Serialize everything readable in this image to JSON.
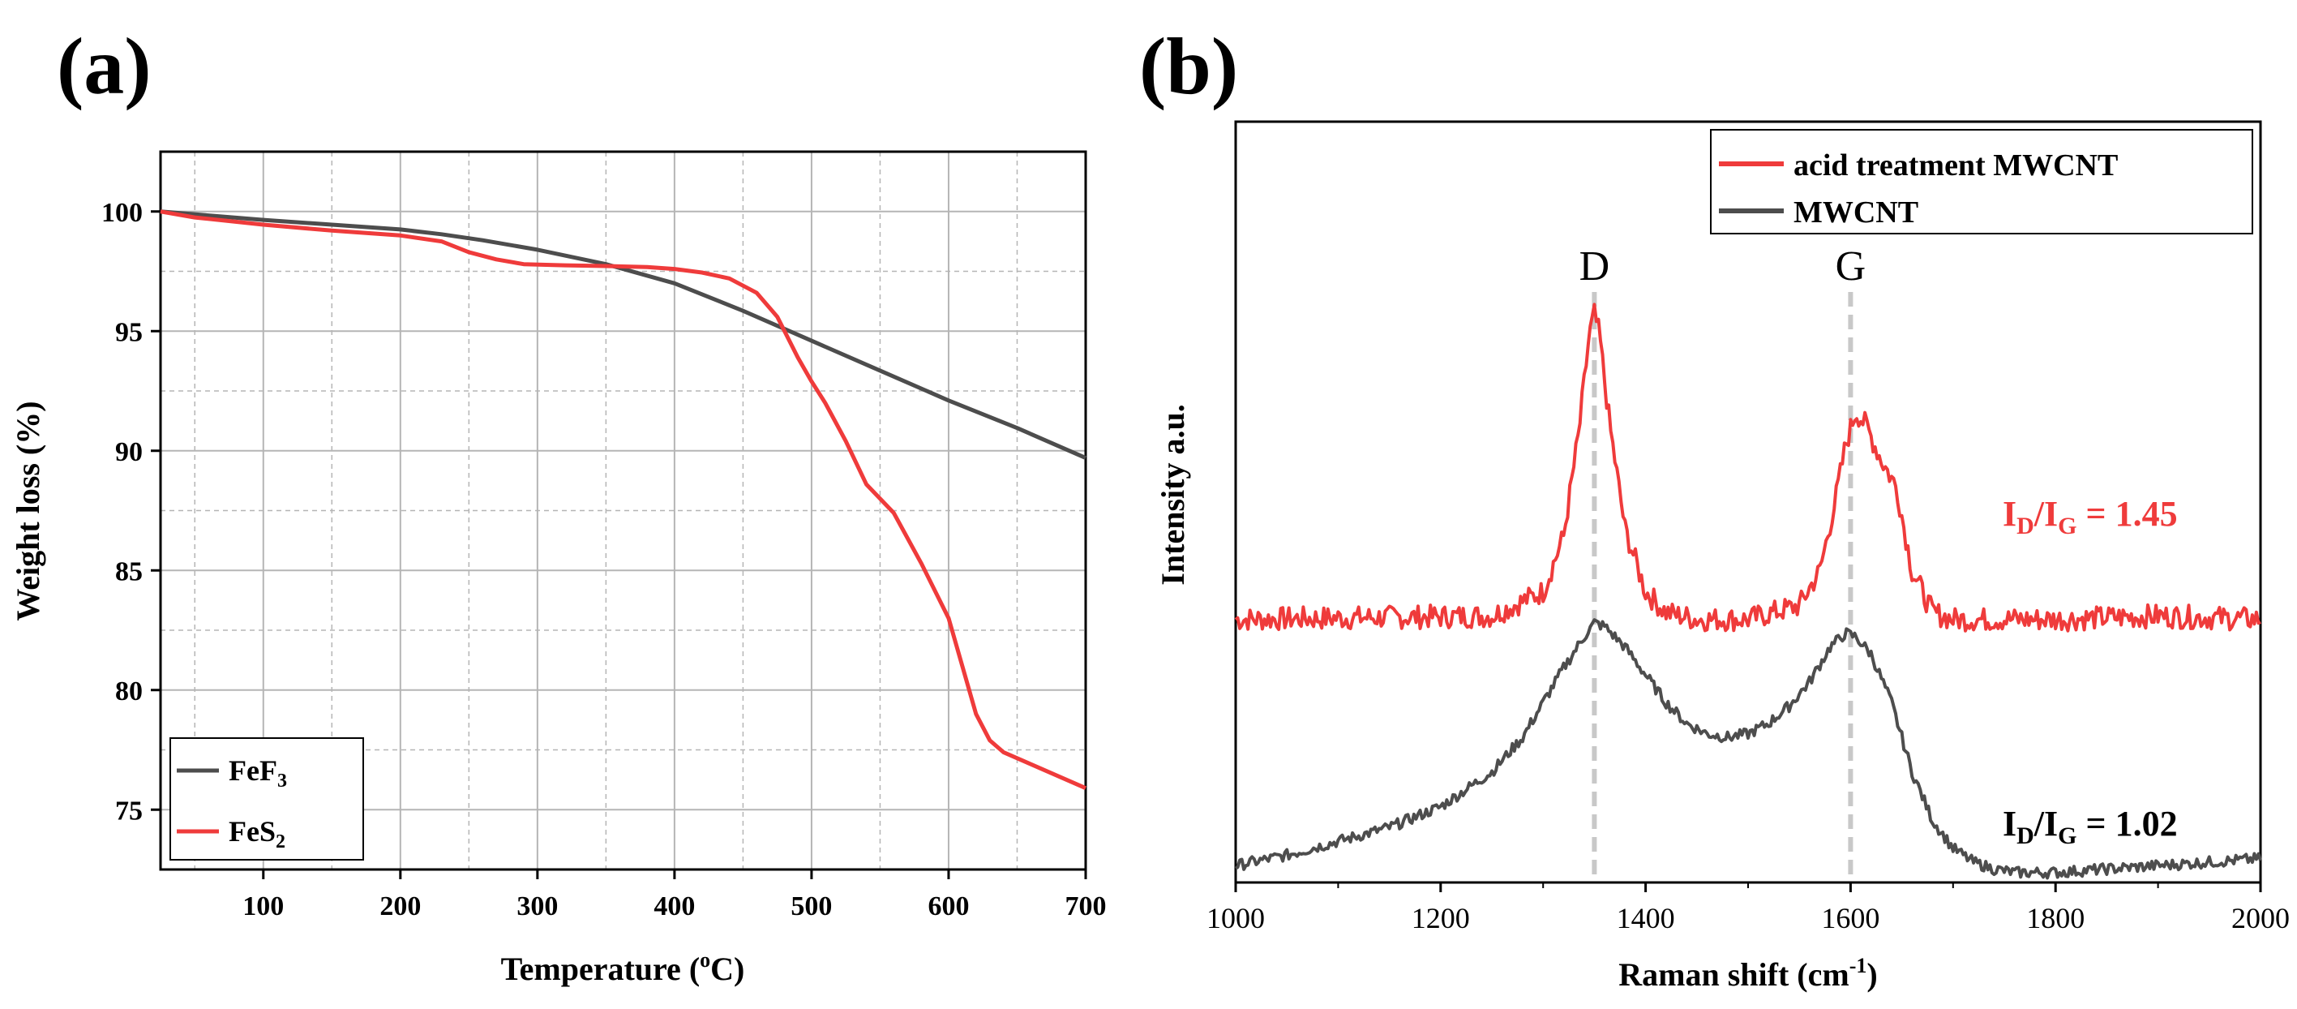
{
  "panel_labels": {
    "a": "(a)",
    "b": "(b)"
  },
  "colors": {
    "red": "#ef3b3b",
    "dark": "#4d4d4d",
    "dashed": "#c8c8c8",
    "grid": "#b5b5b5",
    "axis": "#000000"
  },
  "chart_data": [
    {
      "type": "line",
      "panel": "(a)",
      "title": "",
      "xlabel": "Temperature (°C)",
      "xlabel_main": "Temperature (",
      "xlabel_sup": "o",
      "xlabel_tail": "C)",
      "ylabel": "Weight loss (%)",
      "xlim": [
        25,
        700
      ],
      "ylim": [
        72.5,
        102.5
      ],
      "xticks": [
        100,
        200,
        300,
        400,
        500,
        600,
        700
      ],
      "yticks": [
        75,
        80,
        85,
        90,
        95,
        100
      ],
      "xtick_labels": [
        "100",
        "200",
        "300",
        "400",
        "500",
        "600",
        "700"
      ],
      "ytick_labels": [
        "75",
        "80",
        "85",
        "90",
        "95",
        "100"
      ],
      "grid": true,
      "legend_position": "bottom-left",
      "series": [
        {
          "name": "FeF3",
          "label_main": "FeF",
          "label_sub": "3",
          "color": "#4d4d4d",
          "x": [
            25,
            100,
            150,
            200,
            230,
            260,
            300,
            350,
            400,
            450,
            500,
            550,
            600,
            650,
            700
          ],
          "y": [
            100,
            99.65,
            99.45,
            99.25,
            99.05,
            98.8,
            98.4,
            97.8,
            97.0,
            95.85,
            94.6,
            93.35,
            92.1,
            90.95,
            89.7
          ]
        },
        {
          "name": "FeS2",
          "label_main": "FeS",
          "label_sub": "2",
          "color": "#ef3b3b",
          "x": [
            25,
            50,
            100,
            150,
            200,
            230,
            250,
            270,
            290,
            320,
            350,
            380,
            400,
            420,
            440,
            460,
            475,
            490,
            500,
            510,
            525,
            540,
            560,
            580,
            600,
            610,
            620,
            630,
            640,
            660,
            680,
            700
          ],
          "y": [
            100,
            99.75,
            99.45,
            99.2,
            99.0,
            98.75,
            98.3,
            98.0,
            97.8,
            97.75,
            97.72,
            97.68,
            97.6,
            97.45,
            97.2,
            96.6,
            95.6,
            93.9,
            92.9,
            92.0,
            90.4,
            88.6,
            87.4,
            85.3,
            83.0,
            81.0,
            79.0,
            77.9,
            77.4,
            76.9,
            76.4,
            75.9
          ]
        }
      ]
    },
    {
      "type": "line",
      "panel": "(b)",
      "title": "",
      "xlabel": "Raman shift (cm-1)",
      "xlabel_main": "Raman shift (cm",
      "xlabel_sup": "-1",
      "xlabel_tail": ")",
      "ylabel": "Intensity a.u.",
      "xlim": [
        1000,
        2000
      ],
      "ylim": [
        0,
        100
      ],
      "xticks": [
        1000,
        1200,
        1400,
        1600,
        1800,
        2000
      ],
      "xtick_labels": [
        "1000",
        "1200",
        "1400",
        "1600",
        "1800",
        "2000"
      ],
      "grid": false,
      "legend_position": "top-right",
      "reference_lines": [
        {
          "name": "D",
          "x": 1350
        },
        {
          "name": "G",
          "x": 1600
        }
      ],
      "annotations": [
        {
          "series": "acid treatment MWCNT",
          "label_main": "I",
          "sub1": "D",
          "mid": "/I",
          "sub2": "G",
          "tail": " = 1.45",
          "value": 1.45
        },
        {
          "series": "MWCNT",
          "label_main": "I",
          "sub1": "D",
          "mid": "/I",
          "sub2": "G",
          "tail": " = 1.02",
          "value": 1.02
        }
      ],
      "series": [
        {
          "name": "acid treatment MWCNT",
          "color": "#ef3b3b",
          "x": [
            1000,
            1250,
            1300,
            1320,
            1335,
            1345,
            1350,
            1355,
            1365,
            1380,
            1400,
            1420,
            1450,
            1500,
            1550,
            1570,
            1585,
            1595,
            1605,
            1615,
            1630,
            1645,
            1660,
            1680,
            1700,
            1800,
            1900,
            2000
          ],
          "y": [
            37,
            37.5,
            41,
            49,
            64,
            78,
            81,
            78,
            65,
            50,
            41,
            38,
            37,
            37,
            39,
            44,
            54,
            62,
            67,
            65,
            60,
            56,
            44,
            38,
            37,
            37,
            37.5,
            37
          ]
        },
        {
          "name": "MWCNT",
          "color": "#4d4d4d",
          "x": [
            1000,
            1050,
            1100,
            1150,
            1200,
            1250,
            1280,
            1300,
            1320,
            1340,
            1350,
            1360,
            1380,
            1400,
            1420,
            1440,
            1460,
            1480,
            1500,
            1520,
            1540,
            1560,
            1580,
            1595,
            1605,
            1620,
            1640,
            1660,
            1680,
            1700,
            1720,
            1740,
            1760,
            1800,
            1850,
            1900,
            1950,
            2000
          ],
          "y": [
            1.5,
            3,
            5,
            7,
            10,
            15,
            20,
            25,
            30,
            34.5,
            36.5,
            36,
            33,
            29,
            25,
            22,
            20.5,
            20,
            20.5,
            22,
            24.5,
            28,
            33,
            35,
            34.5,
            32,
            25,
            15,
            8,
            4,
            2,
            1,
            0.5,
            0.5,
            1,
            1.5,
            2,
            2.5
          ]
        }
      ]
    }
  ]
}
